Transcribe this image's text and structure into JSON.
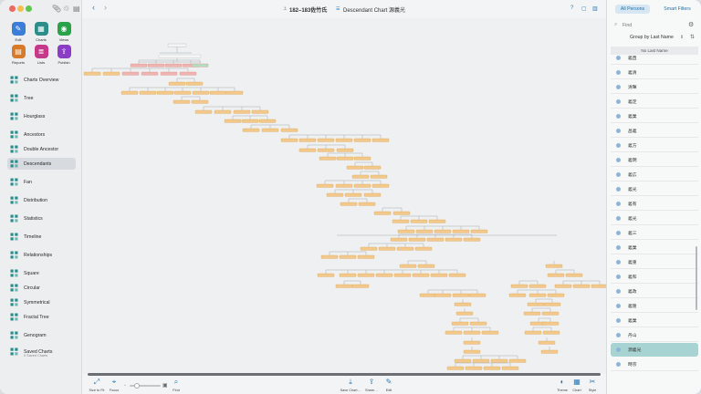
{
  "window": {
    "traffic_colors": [
      "#ed6a5e",
      "#f5bf4f",
      "#61c554"
    ]
  },
  "toolbar": {
    "back_icon": "chevron-left-icon",
    "forward_icon": "chevron-right-icon",
    "document_title": "182–183佐竹氏",
    "chart_title": "Descendant Chart 源義光",
    "help_icon": "question-icon"
  },
  "sidebar": {
    "tools": [
      {
        "label": "Edit",
        "icon": "pencil-icon",
        "color": "#3b7dd8"
      },
      {
        "label": "Charts",
        "icon": "charts-icon",
        "color": "#2c8d8a"
      },
      {
        "label": "Views",
        "icon": "eye-icon",
        "color": "#2aa24a"
      },
      {
        "label": "Reports",
        "icon": "report-icon",
        "color": "#d97a28"
      },
      {
        "label": "Lists",
        "icon": "list-icon",
        "color": "#c4398a"
      },
      {
        "label": "Publish",
        "icon": "publish-icon",
        "color": "#8a3ec4"
      }
    ],
    "items": [
      {
        "label": "Charts Overview",
        "icon": "grid-icon"
      },
      {
        "label": "Tree",
        "icon": "tree-icon"
      },
      {
        "label": "Hourglass",
        "icon": "hourglass-icon"
      },
      {
        "label": "Ancestors",
        "icon": "ancestors-icon"
      },
      {
        "label": "Double Ancestor",
        "icon": "double-ancestor-icon"
      },
      {
        "label": "Descendants",
        "icon": "descendants-icon"
      },
      {
        "label": "Fan",
        "icon": "fan-icon"
      },
      {
        "label": "Distribution",
        "icon": "distribution-icon"
      },
      {
        "label": "Statistics",
        "icon": "statistics-icon"
      },
      {
        "label": "Timeline",
        "icon": "timeline-icon"
      },
      {
        "label": "Relationships",
        "icon": "relationships-icon"
      },
      {
        "label": "Square",
        "icon": "square-icon"
      },
      {
        "label": "Circular",
        "icon": "circular-icon"
      },
      {
        "label": "Symmetrical",
        "icon": "symmetrical-icon"
      },
      {
        "label": "Fractal Tree",
        "icon": "fractal-tree-icon"
      },
      {
        "label": "Genogram",
        "icon": "genogram-icon"
      },
      {
        "label": "Saved Charts",
        "icon": "saved-charts-icon"
      }
    ],
    "saved_charts_sub": "0 Saved Charts"
  },
  "bottombar": {
    "left": [
      {
        "label": "Size to Fit",
        "icon": "size-to-fit-icon"
      },
      {
        "label": "Focus",
        "icon": "focus-icon"
      }
    ],
    "find_label": "Find",
    "right": [
      {
        "label": "Save Chart…",
        "icon": "save-chart-icon"
      },
      {
        "label": "Share…",
        "icon": "share-icon"
      },
      {
        "label": "Edit",
        "icon": "edit-icon"
      },
      {
        "label": "Theme",
        "icon": "theme-icon"
      },
      {
        "label": "Chart",
        "icon": "chart-icon"
      },
      {
        "label": "Style",
        "icon": "style-icon"
      }
    ]
  },
  "rightpanel": {
    "tab_all": "All Persons",
    "tab_smart": "Smart Filters",
    "find_placeholder": "Find",
    "group_by": "Group by Last Name",
    "section_header": "No Last Name",
    "persons": [
      "義直",
      "義清",
      "清暉",
      "義定",
      "義業",
      "昌義",
      "義方",
      "義明",
      "義広",
      "義光",
      "義有",
      "義光",
      "義三",
      "義業",
      "義重",
      "義和",
      "義政",
      "義隆",
      "義業",
      "丹山",
      "源義光",
      "時宗"
    ],
    "selected_index": 20
  },
  "colors": {
    "accent": "#2d7bb8",
    "node_fill": "#f2c98a",
    "node_stroke": "#e0a85a",
    "node_pink": "#efb3b0",
    "node_green": "#b5dcc0",
    "selected_row": "#a8d3d3"
  }
}
